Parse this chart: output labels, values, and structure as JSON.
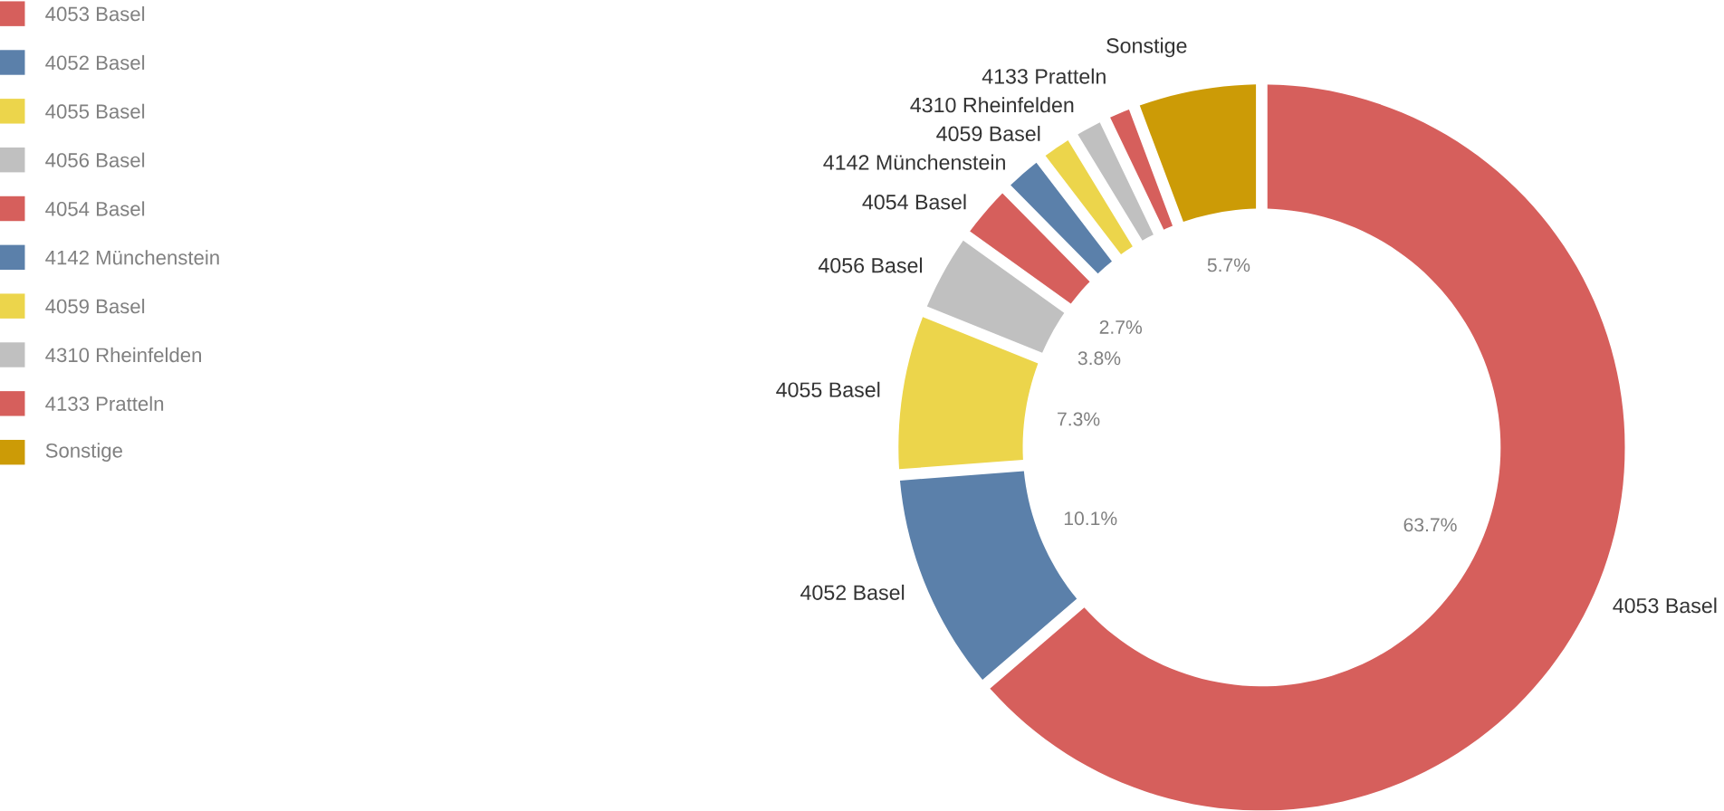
{
  "chart_data": {
    "type": "donut",
    "categories": [
      "4053 Basel",
      "4052 Basel",
      "4055 Basel",
      "4056 Basel",
      "4054 Basel",
      "4142 Münchenstein",
      "4059 Basel",
      "4310 Rheinfelden",
      "4133 Pratteln",
      "Sonstige"
    ],
    "values": [
      63.7,
      10.1,
      7.3,
      3.8,
      2.7,
      2.0,
      1.7,
      1.6,
      1.4,
      5.7
    ],
    "value_labels": [
      "63.7%",
      "10.1%",
      "7.3%",
      "3.8%",
      "2.7%",
      null,
      null,
      null,
      null,
      "5.7%"
    ],
    "colors": [
      "#d65f5c",
      "#5b80aa",
      "#ecd54b",
      "#c0c0c0",
      "#d65f5c",
      "#5b80aa",
      "#ecd54b",
      "#c0c0c0",
      "#d65f5c",
      "#cc9b06"
    ],
    "legend": "left"
  }
}
